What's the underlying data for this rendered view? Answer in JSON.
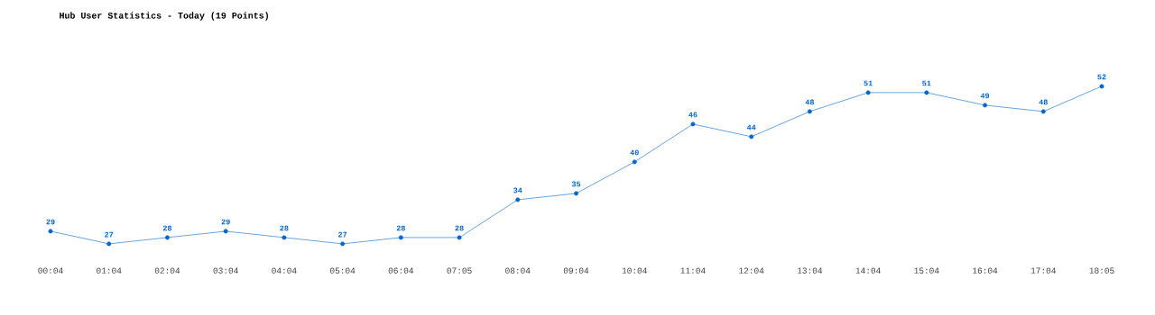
{
  "chart_data": {
    "type": "line",
    "title": "Hub User Statistics - Today (19 Points)",
    "categories": [
      "00:04",
      "01:04",
      "02:04",
      "03:04",
      "04:04",
      "05:04",
      "06:04",
      "07:05",
      "08:04",
      "09:04",
      "10:04",
      "11:04",
      "12:04",
      "13:04",
      "14:04",
      "15:04",
      "16:04",
      "17:04",
      "18:05"
    ],
    "values": [
      29,
      27,
      28,
      29,
      28,
      27,
      28,
      28,
      34,
      35,
      40,
      46,
      44,
      48,
      51,
      51,
      49,
      48,
      52
    ],
    "color": "#0066cc",
    "marker": "circle",
    "line_style": "solid",
    "data_labels": true
  }
}
